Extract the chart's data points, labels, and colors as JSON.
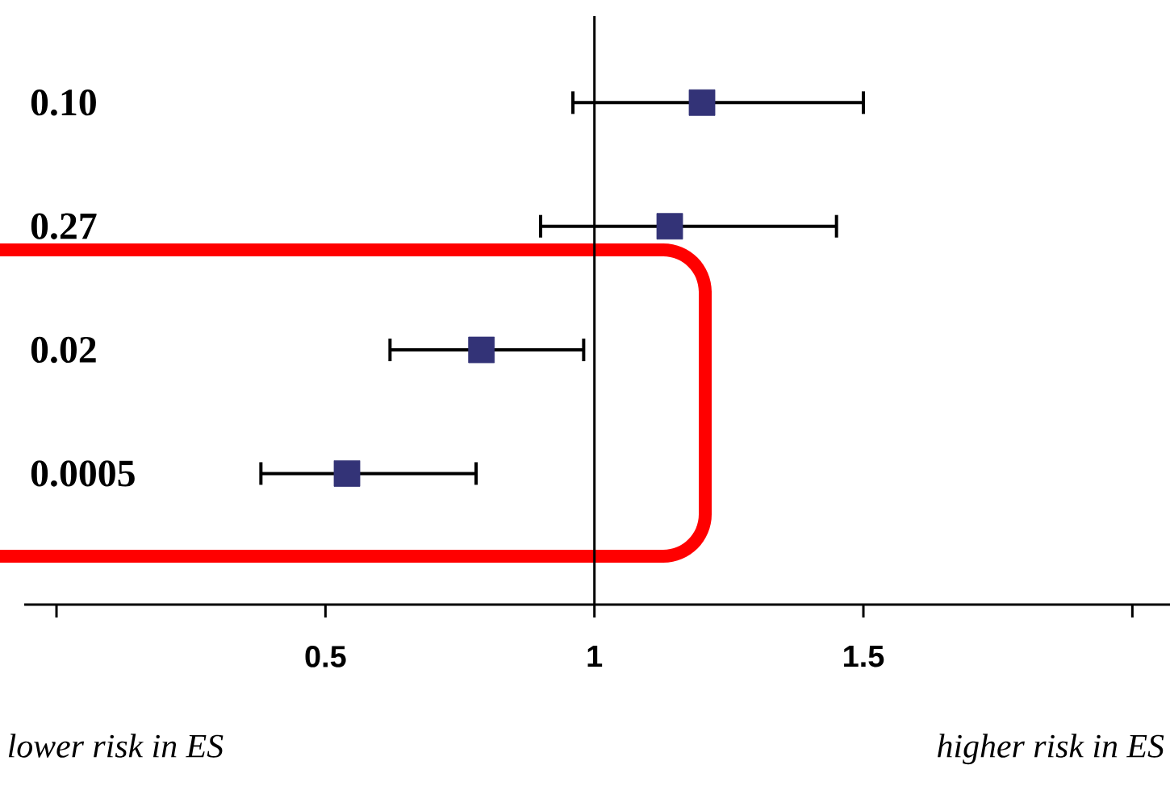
{
  "chart_data": {
    "type": "scatter",
    "orientation": "horizontal",
    "categories": [
      "0.10",
      "0.27",
      "0.02",
      "0.0005"
    ],
    "values": [
      1.2,
      1.14,
      0.79,
      0.54
    ],
    "errors": [
      [
        0.96,
        1.5
      ],
      [
        0.9,
        1.45
      ],
      [
        0.62,
        0.98
      ],
      [
        0.38,
        0.78
      ]
    ],
    "color": "#333377",
    "marker": "square",
    "xlim": [
      -0.06,
      2.07
    ],
    "xticks": [
      {
        "value": 0,
        "label": null
      },
      0.5,
      1,
      1.5,
      {
        "value": 2,
        "label": null
      }
    ],
    "ref_lines": [
      {
        "axis": "x",
        "value": 1
      }
    ],
    "annotations": [
      "lower risk in ES",
      "higher risk in ES"
    ]
  }
}
